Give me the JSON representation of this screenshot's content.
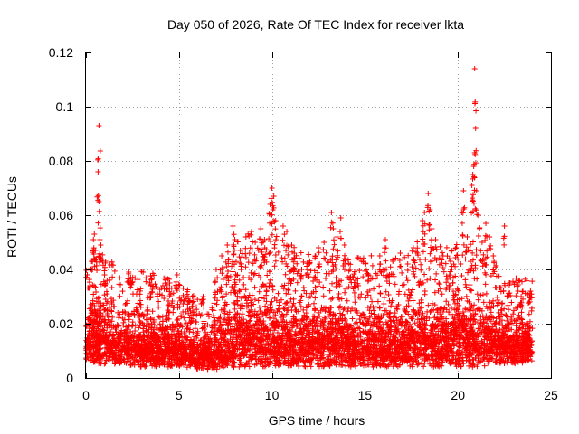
{
  "chart_data": {
    "type": "scatter",
    "title": "Day 050 of 2026, Rate Of TEC Index for receiver lkta",
    "xlabel": "GPS time / hours",
    "ylabel": "ROTI / TECUs",
    "xlim": [
      0,
      25
    ],
    "ylim": [
      0,
      0.12
    ],
    "xticks": [
      0,
      5,
      10,
      15,
      20,
      25
    ],
    "xtick_labels": [
      "0",
      "5",
      "10",
      "15",
      "20",
      "25"
    ],
    "yticks": [
      0,
      0.02,
      0.04,
      0.06,
      0.08,
      0.1,
      0.12
    ],
    "ytick_labels": [
      "0",
      "0.02",
      "0.04",
      "0.06",
      "0.08",
      "0.1",
      "0.12"
    ],
    "grid": true,
    "marker": "+",
    "color": "#ff0000",
    "density_profile": {
      "description": "approximate envelope of the dense point cloud (time in hours, ROTI in TECU/min)",
      "hours": [
        0,
        1,
        2,
        3,
        4,
        5,
        6,
        7,
        8,
        9,
        10,
        11,
        12,
        13,
        14,
        15,
        16,
        17,
        18,
        19,
        20,
        21,
        22,
        23,
        24
      ],
      "typical_low": [
        0.006,
        0.005,
        0.005,
        0.004,
        0.004,
        0.004,
        0.003,
        0.003,
        0.004,
        0.004,
        0.004,
        0.004,
        0.004,
        0.004,
        0.004,
        0.004,
        0.004,
        0.004,
        0.004,
        0.004,
        0.004,
        0.004,
        0.005,
        0.005,
        0.006
      ],
      "typical_high": [
        0.03,
        0.032,
        0.026,
        0.028,
        0.026,
        0.025,
        0.02,
        0.022,
        0.035,
        0.038,
        0.036,
        0.034,
        0.032,
        0.033,
        0.03,
        0.032,
        0.03,
        0.032,
        0.036,
        0.034,
        0.034,
        0.036,
        0.03,
        0.026,
        0.026
      ]
    },
    "notable_points": [
      {
        "x": 0.3,
        "y": 0.043
      },
      {
        "x": 0.4,
        "y": 0.051
      },
      {
        "x": 0.45,
        "y": 0.053
      },
      {
        "x": 0.5,
        "y": 0.047
      },
      {
        "x": 0.7,
        "y": 0.093
      },
      {
        "x": 0.65,
        "y": 0.076
      },
      {
        "x": 0.7,
        "y": 0.065
      },
      {
        "x": 0.75,
        "y": 0.051
      },
      {
        "x": 0.8,
        "y": 0.049
      },
      {
        "x": 1.0,
        "y": 0.038
      },
      {
        "x": 2.3,
        "y": 0.039
      },
      {
        "x": 2.4,
        "y": 0.037
      },
      {
        "x": 3.5,
        "y": 0.034
      },
      {
        "x": 4.3,
        "y": 0.037
      },
      {
        "x": 4.5,
        "y": 0.035
      },
      {
        "x": 4.9,
        "y": 0.038
      },
      {
        "x": 5.5,
        "y": 0.03
      },
      {
        "x": 6.3,
        "y": 0.03
      },
      {
        "x": 7.0,
        "y": 0.04
      },
      {
        "x": 7.3,
        "y": 0.045
      },
      {
        "x": 7.6,
        "y": 0.049
      },
      {
        "x": 7.9,
        "y": 0.056
      },
      {
        "x": 8.0,
        "y": 0.051
      },
      {
        "x": 8.3,
        "y": 0.047
      },
      {
        "x": 8.6,
        "y": 0.052
      },
      {
        "x": 8.9,
        "y": 0.054
      },
      {
        "x": 9.1,
        "y": 0.05
      },
      {
        "x": 9.4,
        "y": 0.055
      },
      {
        "x": 9.6,
        "y": 0.051
      },
      {
        "x": 9.9,
        "y": 0.064
      },
      {
        "x": 10.0,
        "y": 0.07
      },
      {
        "x": 10.1,
        "y": 0.067
      },
      {
        "x": 10.05,
        "y": 0.062
      },
      {
        "x": 10.2,
        "y": 0.058
      },
      {
        "x": 10.6,
        "y": 0.056
      },
      {
        "x": 10.8,
        "y": 0.054
      },
      {
        "x": 11.2,
        "y": 0.046
      },
      {
        "x": 11.6,
        "y": 0.04
      },
      {
        "x": 12.0,
        "y": 0.042
      },
      {
        "x": 12.5,
        "y": 0.048
      },
      {
        "x": 12.8,
        "y": 0.05
      },
      {
        "x": 13.2,
        "y": 0.061
      },
      {
        "x": 13.3,
        "y": 0.055
      },
      {
        "x": 13.5,
        "y": 0.052
      },
      {
        "x": 13.7,
        "y": 0.059
      },
      {
        "x": 13.9,
        "y": 0.049
      },
      {
        "x": 14.2,
        "y": 0.04
      },
      {
        "x": 14.5,
        "y": 0.036
      },
      {
        "x": 15.2,
        "y": 0.038
      },
      {
        "x": 15.8,
        "y": 0.045
      },
      {
        "x": 16.1,
        "y": 0.051
      },
      {
        "x": 16.5,
        "y": 0.043
      },
      {
        "x": 16.9,
        "y": 0.046
      },
      {
        "x": 17.3,
        "y": 0.042
      },
      {
        "x": 17.6,
        "y": 0.048
      },
      {
        "x": 18.1,
        "y": 0.058
      },
      {
        "x": 18.2,
        "y": 0.061
      },
      {
        "x": 18.4,
        "y": 0.068
      },
      {
        "x": 18.5,
        "y": 0.062
      },
      {
        "x": 18.6,
        "y": 0.055
      },
      {
        "x": 18.8,
        "y": 0.051
      },
      {
        "x": 19.2,
        "y": 0.045
      },
      {
        "x": 19.6,
        "y": 0.043
      },
      {
        "x": 19.9,
        "y": 0.048
      },
      {
        "x": 20.2,
        "y": 0.061
      },
      {
        "x": 20.3,
        "y": 0.069
      },
      {
        "x": 20.5,
        "y": 0.052
      },
      {
        "x": 20.75,
        "y": 0.071
      },
      {
        "x": 20.8,
        "y": 0.075
      },
      {
        "x": 20.85,
        "y": 0.078
      },
      {
        "x": 20.9,
        "y": 0.083
      },
      {
        "x": 20.95,
        "y": 0.092
      },
      {
        "x": 20.9,
        "y": 0.114
      },
      {
        "x": 21.0,
        "y": 0.069
      },
      {
        "x": 21.1,
        "y": 0.06
      },
      {
        "x": 21.3,
        "y": 0.05
      },
      {
        "x": 21.5,
        "y": 0.057
      },
      {
        "x": 21.7,
        "y": 0.052
      },
      {
        "x": 21.9,
        "y": 0.045
      },
      {
        "x": 22.5,
        "y": 0.056
      },
      {
        "x": 22.8,
        "y": 0.035
      },
      {
        "x": 23.4,
        "y": 0.03
      },
      {
        "x": 23.9,
        "y": 0.032
      }
    ]
  }
}
